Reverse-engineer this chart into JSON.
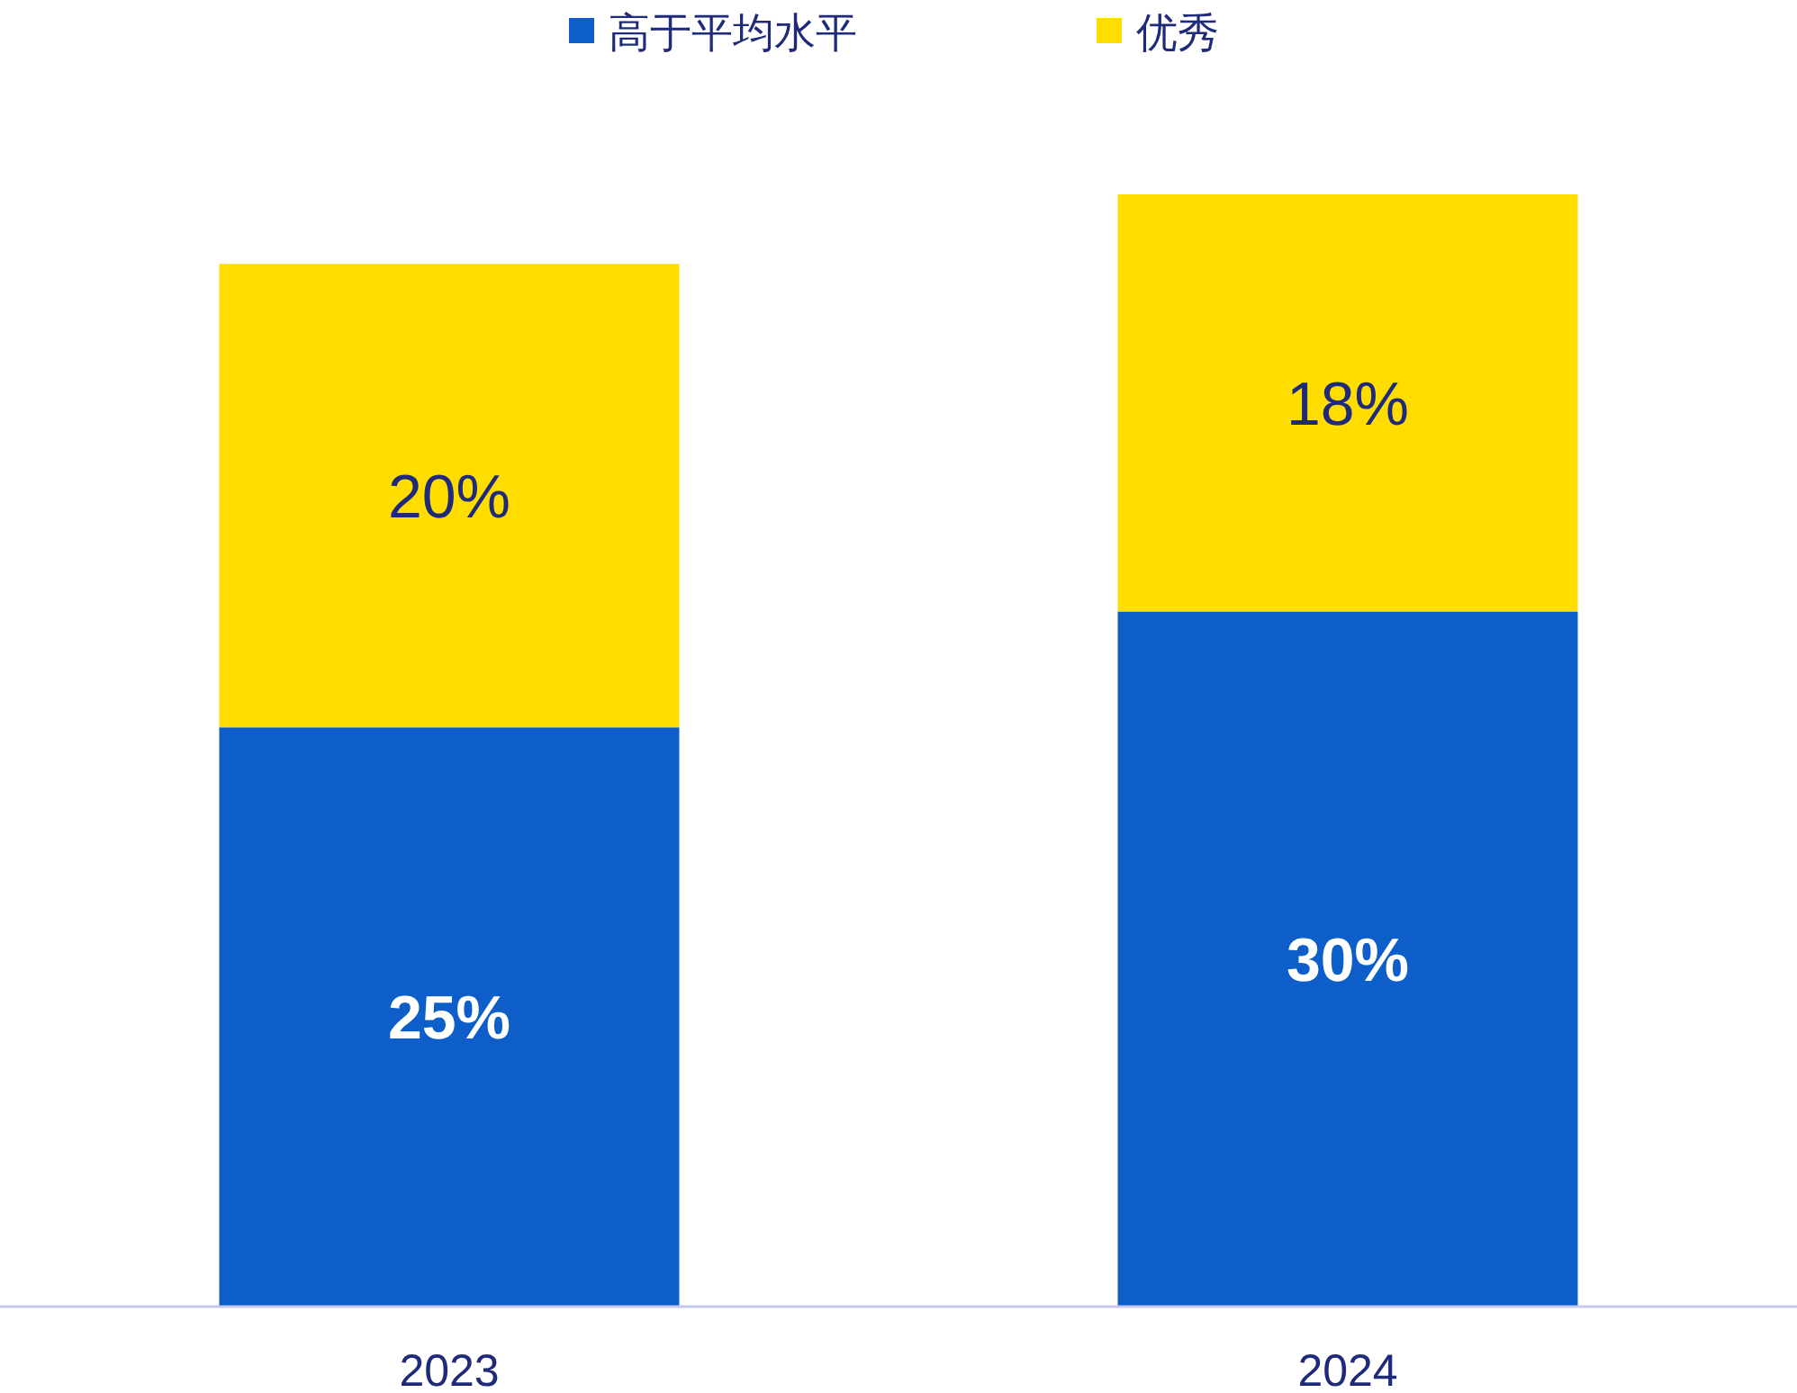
{
  "chart_data": {
    "type": "bar",
    "stacked": true,
    "legend": "top",
    "categories": [
      "2023",
      "2024"
    ],
    "series": [
      {
        "name": "高于平均水平",
        "color": "#0d5ec9",
        "values": [
          25,
          30
        ],
        "value_labels": [
          "25%",
          "30%"
        ]
      },
      {
        "name": "优秀",
        "color": "#ffdd00",
        "values": [
          20,
          18
        ],
        "value_labels": [
          "20%",
          "18%"
        ]
      }
    ]
  }
}
